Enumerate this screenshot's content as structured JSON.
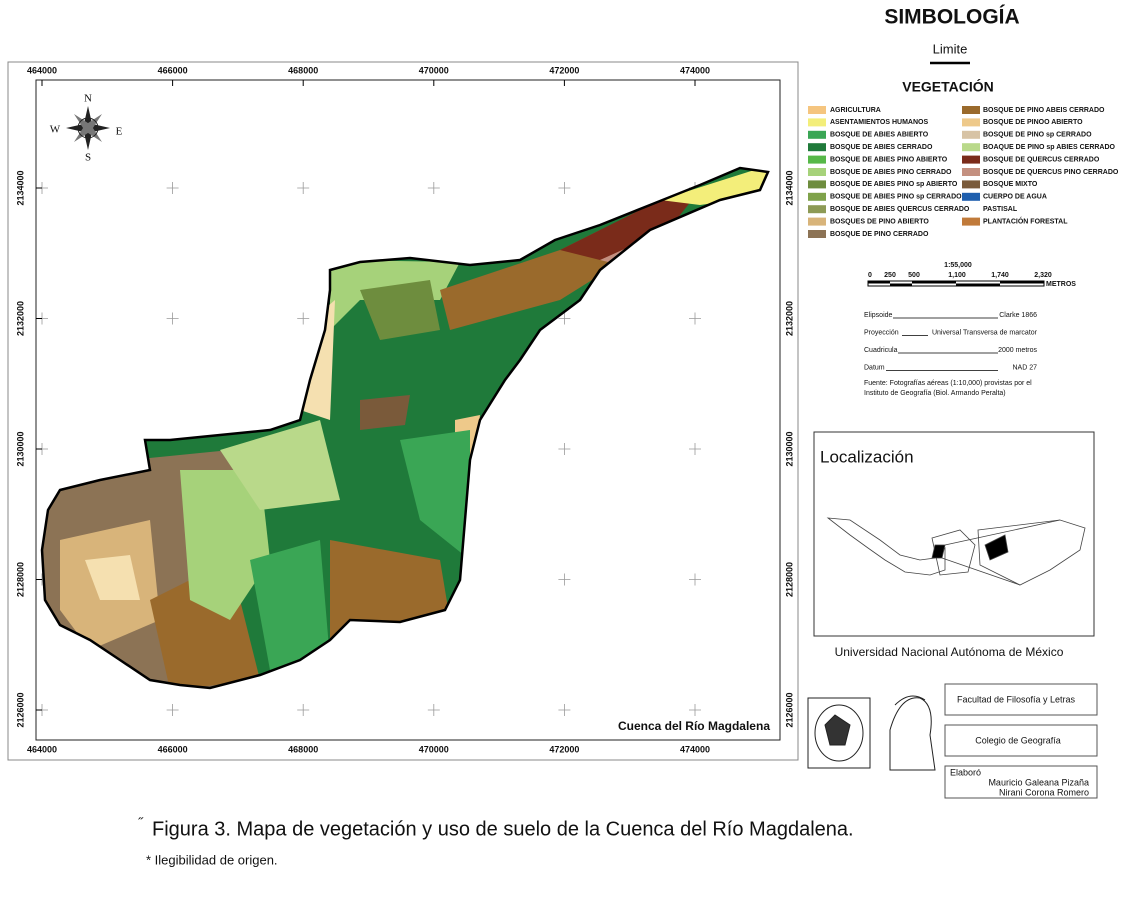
{
  "map": {
    "title": "Cuenca del Río Magdalena",
    "x_labels": [
      464000,
      466000,
      468000,
      470000,
      472000,
      474000
    ],
    "y_labels": [
      2134000,
      2132000,
      2130000,
      2128000,
      2126000
    ],
    "compass": {
      "n": "N",
      "s": "S",
      "e": "E",
      "w": "W"
    }
  },
  "legend": {
    "title": "SIMBOLOGÍA",
    "limit": "Limite",
    "subtitle": "VEGETACIÓN",
    "items": [
      {
        "name": "AGRICULTURA",
        "color": "#f5c57f"
      },
      {
        "name": "ASENTAMIENTOS HUMANOS",
        "color": "#f3ee7a"
      },
      {
        "name": "BOSQUE DE ABIES ABIERTO",
        "color": "#3aa655"
      },
      {
        "name": "BOSQUE DE ABIES CERRADO",
        "color": "#1f7a3a"
      },
      {
        "name": "BOSQUE DE ABIES PINO ABIERTO",
        "color": "#56b848"
      },
      {
        "name": "BOSQUE DE ABIES PINO CERRADO",
        "color": "#a6d27a"
      },
      {
        "name": "BOSQUE DE ABIES PINO sp ABIERTO",
        "color": "#6e8d3e"
      },
      {
        "name": "BOSQUE DE ABIES PINO sp CERRADO",
        "color": "#7fa24a"
      },
      {
        "name": "BOSQUE DE ABIES QUERCUS CERRADO",
        "color": "#8d9a55"
      },
      {
        "name": "BOSQUES DE PINO ABIERTO",
        "color": "#d8b47a"
      },
      {
        "name": "BOSQUE DE PINO CERRADO",
        "color": "#8c7355"
      },
      {
        "name": "BOSQUE DE PINO ABEIS CERRADO",
        "color": "#9a6a2c"
      },
      {
        "name": "BOSQUE DE PINOO  ABIERTO",
        "color": "#eec98a"
      },
      {
        "name": "BOSQUE DE PINO sp CERRADO",
        "color": "#d7c3a5"
      },
      {
        "name": "BOAQUE DE PINO sp ABIES CERRADO",
        "color": "#b9d98a"
      },
      {
        "name": "BOSQUE DE QUERCUS CERRADO",
        "color": "#7a2b1a"
      },
      {
        "name": "BOSQUE DE QUERCUS  PINO CERRADO",
        "color": "#c49080"
      },
      {
        "name": "BOSQUE MIXTO",
        "color": "#7a5a3a"
      },
      {
        "name": "CUERPO DE AGUA",
        "color": "#1f5fae"
      },
      {
        "name": "PASTISAL",
        "color": "#ffffff"
      },
      {
        "name": "PLANTACIÓN FORESTAL",
        "color": "#c07a3a"
      }
    ]
  },
  "scale": {
    "ratio": "1:55,000",
    "ticks": [
      "0",
      "250",
      "500",
      "1,100",
      "1,740",
      "2,320"
    ],
    "unit": "METROS"
  },
  "info": [
    {
      "label": "Elipsoide",
      "value": "Clarke 1866"
    },
    {
      "label": "Proyección",
      "value": "Universal Transversa de marcator"
    },
    {
      "label": "Cuadricula",
      "value": "2000 metros"
    },
    {
      "label": "Datum",
      "value": "NAD 27"
    }
  ],
  "source": [
    "Fuente: Fotografías aéreas (1:10,000) provistas por el",
    "Instituto de Geografía (Biol. Armando Peralta)"
  ],
  "location": {
    "title": "Localización"
  },
  "university": "Universidad Nacional Autónoma de México",
  "credits": {
    "faculty": "Facultad de Filosofía y Letras",
    "college": "Colegio de Geografía",
    "made_by": "Elaboró",
    "authors": [
      "Mauricio Galeana Pizaña",
      "Nirani Corona Romero"
    ]
  },
  "caption": {
    "mark": "˝",
    "text": "Figura 3. Mapa de vegetación y uso de suelo de la Cuenca del Río Magdalena.",
    "note": "* Ilegibilidad de origen."
  }
}
